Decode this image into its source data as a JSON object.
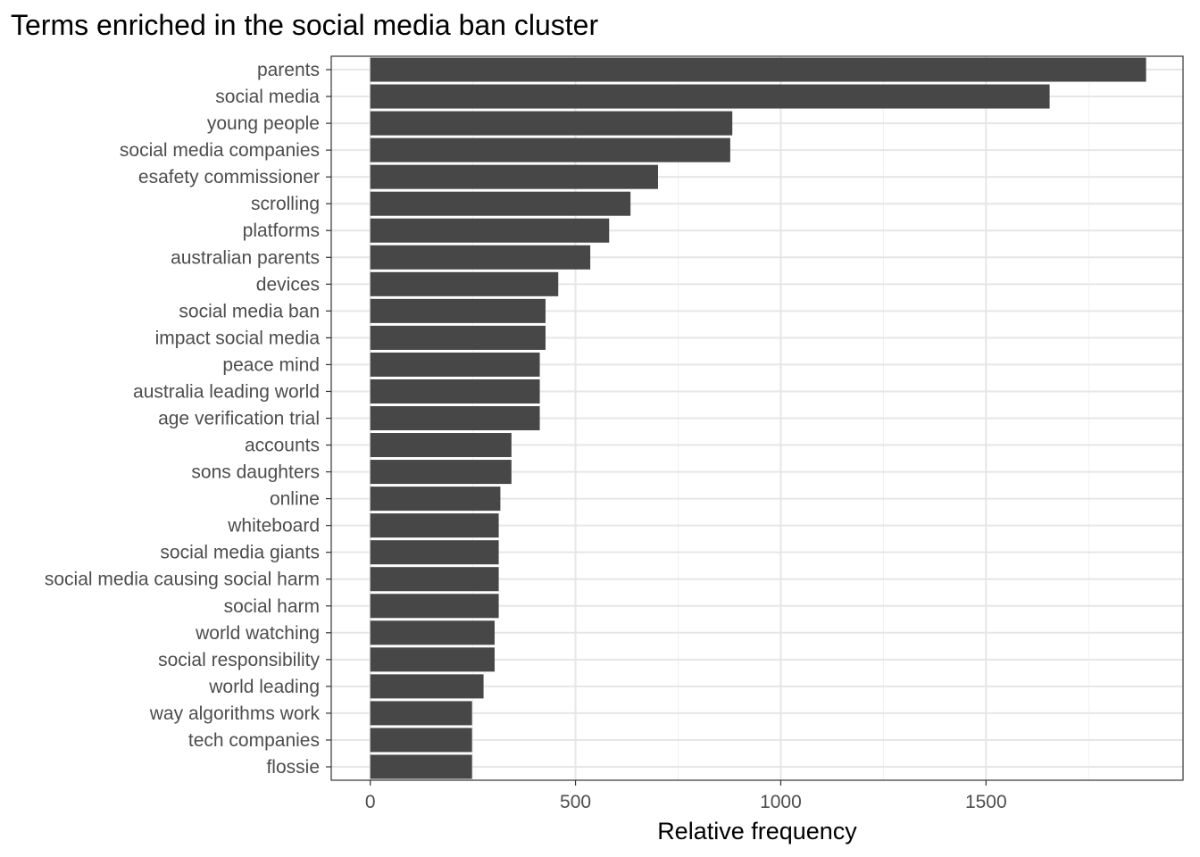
{
  "chart_data": {
    "type": "bar",
    "orientation": "horizontal",
    "title": "Terms enriched in the social media ban cluster",
    "xlabel": "Relative frequency",
    "ylabel": "",
    "xlim": [
      -95,
      1980
    ],
    "x_ticks": [
      0,
      500,
      1000,
      1500
    ],
    "x_tick_labels": [
      "0",
      "500",
      "1000",
      "1500"
    ],
    "grid": true,
    "legend": "none",
    "bar_color": "#474747",
    "categories": [
      "parents",
      "social media",
      "young people",
      "social media companies",
      "esafety commissioner",
      "scrolling",
      "platforms",
      "australian parents",
      "devices",
      "social media ban",
      "impact social media",
      "peace mind",
      "australia leading world",
      "age verification trial",
      "accounts",
      "sons daughters",
      "online",
      "whiteboard",
      "social media giants",
      "social media causing social harm",
      "social harm",
      "world watching",
      "social responsibility",
      "world leading",
      "way algorithms work",
      "tech companies",
      "flossie"
    ],
    "values": [
      1890,
      1655,
      882,
      877,
      701,
      634,
      582,
      536,
      458,
      427,
      427,
      413,
      413,
      413,
      344,
      344,
      317,
      313,
      313,
      313,
      313,
      303,
      303,
      276,
      248,
      248,
      248
    ]
  }
}
